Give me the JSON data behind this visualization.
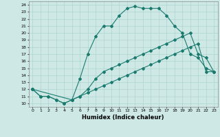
{
  "xlabel": "Humidex (Indice chaleur)",
  "background_color": "#cde8e5",
  "grid_color": "#afd4d0",
  "line_color": "#1a7a6e",
  "xlim": [
    -0.5,
    23.5
  ],
  "ylim": [
    9.5,
    24.5
  ],
  "xticks": [
    0,
    1,
    2,
    3,
    4,
    5,
    6,
    7,
    8,
    9,
    10,
    11,
    12,
    13,
    14,
    15,
    16,
    17,
    18,
    19,
    20,
    21,
    22,
    23
  ],
  "yticks": [
    10,
    11,
    12,
    13,
    14,
    15,
    16,
    17,
    18,
    19,
    20,
    21,
    22,
    23,
    24
  ],
  "line1_x": [
    0,
    1,
    2,
    3,
    4,
    5,
    6,
    7,
    8,
    9,
    10,
    11,
    12,
    13,
    14,
    15,
    16,
    17,
    18,
    19,
    20,
    21,
    22,
    23
  ],
  "line1_y": [
    12,
    11,
    11,
    10.5,
    10,
    10.5,
    13.5,
    17,
    19.5,
    21,
    21,
    22.5,
    23.5,
    23.8,
    23.5,
    23.5,
    23.5,
    22.5,
    21,
    20,
    17,
    16.5,
    15,
    14.5
  ],
  "line2_x": [
    0,
    1,
    2,
    3,
    4,
    5,
    6,
    7,
    8,
    9,
    10,
    11,
    12,
    13,
    14,
    15,
    16,
    17,
    18,
    19,
    20,
    21,
    22,
    23
  ],
  "line2_y": [
    12,
    11,
    11,
    10.5,
    10,
    10.5,
    11,
    11.5,
    12,
    12.5,
    13,
    13.5,
    14,
    14.5,
    15,
    15.5,
    16,
    16.5,
    17,
    17.5,
    18,
    18.5,
    14.5,
    14.5
  ],
  "line3_x": [
    0,
    5,
    6,
    7,
    8,
    9,
    10,
    11,
    12,
    13,
    14,
    15,
    16,
    17,
    18,
    19,
    20,
    21,
    22,
    23
  ],
  "line3_y": [
    12,
    10.5,
    11,
    12,
    13.5,
    14.5,
    15,
    15.5,
    16,
    16.5,
    17,
    17.5,
    18,
    18.5,
    19,
    19.5,
    20,
    17,
    16.5,
    14.5
  ]
}
